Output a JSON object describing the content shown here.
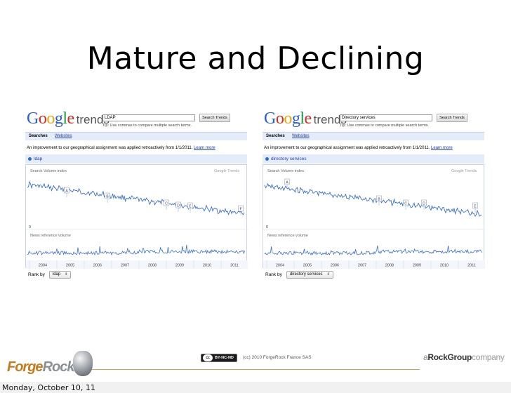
{
  "slide": {
    "title": "Mature and Declining"
  },
  "panels": [
    {
      "search_value": "LDAP",
      "search_button": "Search Trends",
      "tip": "Tip: Use commas to compare multiple search terms.",
      "tab_searches": "Searches",
      "tab_websites": "Websites",
      "notice": "An improvement to our geographical assignment was applied retroactively from 1/1/2011.",
      "notice_link": "Learn more",
      "term": "ldap",
      "volume_label": "Search Volume index",
      "watermark": "Google Trends",
      "zero_label": "0",
      "news_label": "News reference volume",
      "years": [
        "2004",
        "2005",
        "2006",
        "2007",
        "2008",
        "2009",
        "2010",
        "2011"
      ],
      "markers": [
        "A",
        "B",
        "C",
        "D",
        "E",
        "F"
      ],
      "rank_label": "Rank by",
      "rank_value": "ldap"
    },
    {
      "search_value": "Directory services",
      "search_button": "Search Trends",
      "tip": "Tip: Use commas to compare multiple search terms.",
      "tab_searches": "Searches",
      "tab_websites": "Websites",
      "notice": "An improvement to our geographical assignment was applied retroactively from 1/1/2011.",
      "notice_link": "Learn more",
      "term": "directory services",
      "volume_label": "Search Volume index",
      "watermark": "Google Trends",
      "zero_label": "0",
      "news_label": "News reference volume",
      "years": [
        "2004",
        "2005",
        "2006",
        "2007",
        "2008",
        "2009",
        "2010",
        "2011"
      ],
      "markers": [
        "A",
        "B",
        "C",
        "D",
        "E"
      ],
      "rank_label": "Rank by",
      "rank_value": "directory services"
    }
  ],
  "footer": {
    "logo_forge": "Forge",
    "logo_rock": "Rock",
    "cc_badge": "BY-NC-ND",
    "cc_icon": "cc",
    "copyright": "(cc) 2010 ForgeRock France SAS",
    "group_a": "a",
    "group_rock": "RockGroup",
    "group_company": "company",
    "date": "Monday, October 10, 11"
  },
  "colors": {
    "series": "#3a6fcf",
    "accent": "#c47b1e"
  }
}
